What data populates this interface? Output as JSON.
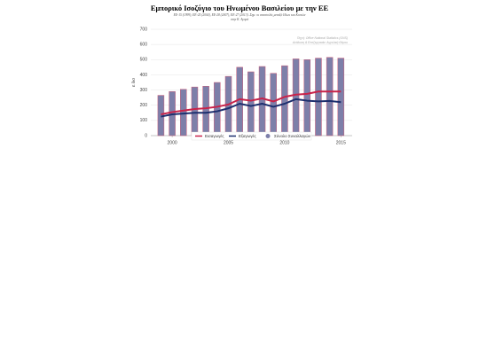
{
  "chart_data": {
    "type": "combo",
    "title": "Εμπορικό Ισοζύγιο του Ηνωμένου Βασιλείου με την ΕΕ",
    "subtitle": [
      "ΕΕ-15 (1999), ΕΕ-25 (2004), ΕΕ-28 (2007), ΕΕ-27 (2013). Σημ: οι αποστολές μεταξύ Ιδίων και Κοινών",
      "στην Κ. Αγορά"
    ],
    "source": [
      "Πηγή: Office National Statistics (ONS)",
      "Ανάλυση & Επεξεργασία: Αγγελική Θέμου"
    ],
    "y_label": "£ δισ",
    "x": [
      1999,
      2000,
      2001,
      2002,
      2003,
      2004,
      2005,
      2006,
      2007,
      2008,
      2009,
      2010,
      2011,
      2012,
      2013,
      2014,
      2015
    ],
    "series": [
      {
        "name": "Σύνολο Συναλλαγών",
        "kind": "bar",
        "color": "#7d7fa9",
        "edge": "#c95a78",
        "values": [
          265,
          290,
          305,
          320,
          325,
          350,
          390,
          450,
          420,
          455,
          410,
          460,
          505,
          500,
          510,
          515,
          510
        ]
      },
      {
        "name": "Εισαγωγές",
        "kind": "line",
        "color": "#c8234a",
        "values": [
          140,
          155,
          165,
          175,
          180,
          190,
          205,
          240,
          230,
          245,
          225,
          255,
          270,
          275,
          290,
          290,
          290
        ]
      },
      {
        "name": "Εξαγωγές",
        "kind": "line",
        "color": "#1d2f6e",
        "values": [
          125,
          140,
          145,
          150,
          150,
          160,
          180,
          210,
          195,
          210,
          190,
          210,
          240,
          230,
          225,
          228,
          220
        ]
      }
    ],
    "xlim": [
      1998.1,
      2016
    ],
    "xticks": [
      2000,
      2005,
      2010,
      2015
    ],
    "ylim": [
      0,
      700
    ],
    "yticks": [
      0,
      100,
      200,
      300,
      400,
      500,
      600,
      700
    ],
    "grid": true,
    "legend": "bottom"
  }
}
